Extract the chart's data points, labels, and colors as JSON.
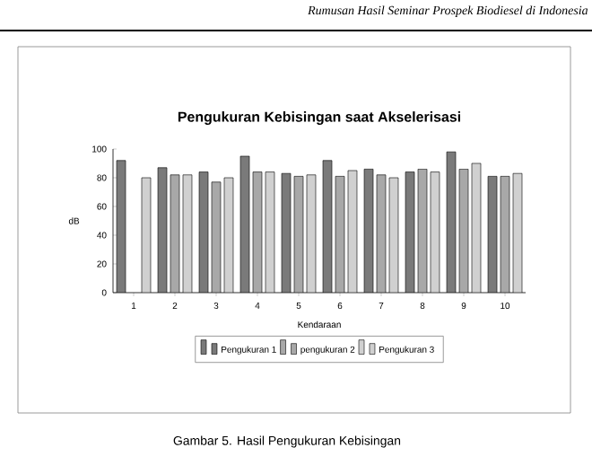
{
  "chart_data": {
    "type": "bar",
    "title": "Pengukuran Kebisingan saat Akselerisasi",
    "xlabel": "Kendaraan",
    "ylabel": "dB",
    "categories": [
      "1",
      "2",
      "3",
      "4",
      "5",
      "6",
      "7",
      "8",
      "9",
      "10"
    ],
    "series": [
      {
        "name": "Pengukuran 1",
        "color": "#7a7a7a",
        "values": [
          92,
          87,
          84,
          95,
          83,
          92,
          86,
          84,
          98,
          81
        ]
      },
      {
        "name": "pengukuran 2",
        "color": "#a8a8a8",
        "values": [
          null,
          82,
          77,
          84,
          81,
          81,
          82,
          86,
          86,
          81
        ]
      },
      {
        "name": "Pengukuran 3",
        "color": "#d0d0d0",
        "values": [
          80,
          82,
          80,
          84,
          82,
          85,
          80,
          84,
          90,
          83
        ]
      }
    ],
    "ylim": [
      0,
      100
    ],
    "yticks": [
      0,
      20,
      40,
      60,
      80,
      100
    ],
    "legend": "bottom",
    "grid": false,
    "annotations": [
      "Rumusan Hasil Seminar Prospek Biodiesel di Indonesia",
      "Gambar 5. Hasil Pengukuran Kebisingan"
    ]
  }
}
